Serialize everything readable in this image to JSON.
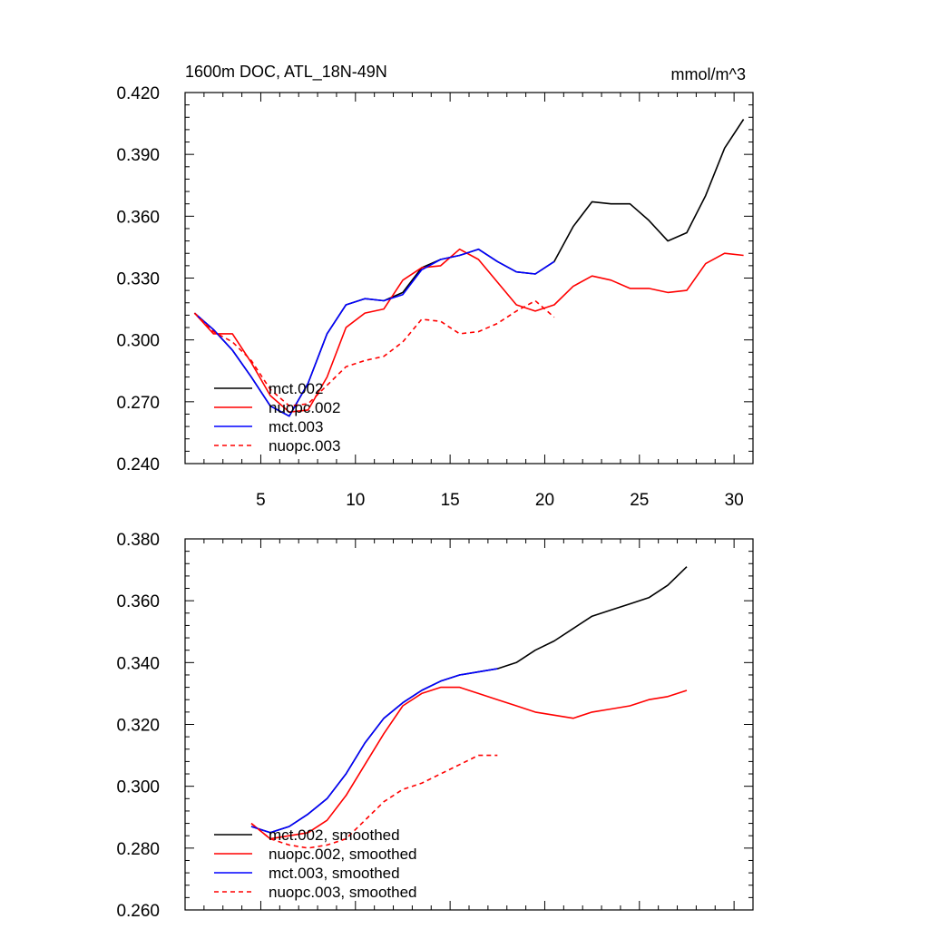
{
  "chart_data": [
    {
      "type": "line",
      "title": "1600m DOC, ATL_18N-49N",
      "units": "mmol/m^3",
      "xlim": [
        1,
        31
      ],
      "ylim": [
        0.24,
        0.42
      ],
      "x_ticks": [
        5,
        10,
        15,
        20,
        25,
        30
      ],
      "x_tick_labels": [
        "5",
        "10",
        "15",
        "20",
        "25",
        "30"
      ],
      "y_ticks": [
        0.24,
        0.27,
        0.3,
        0.33,
        0.36,
        0.39,
        0.42
      ],
      "y_tick_labels": [
        "0.240",
        "0.270",
        "0.300",
        "0.330",
        "0.360",
        "0.390",
        "0.420"
      ],
      "legend_position": "bottom-left",
      "series": [
        {
          "name": "mct.002",
          "color": "#000000",
          "dash": "solid",
          "x": [
            1.5,
            2.5,
            3.5,
            4.5,
            5.5,
            6.5,
            7.5,
            8.5,
            9.5,
            10.5,
            11.5,
            12.5,
            13.5,
            14.5,
            15.5,
            16.5,
            17.5,
            18.5,
            19.5,
            20.5,
            21.5,
            22.5,
            23.5,
            24.5,
            25.5,
            26.5,
            27.5,
            28.5,
            29.5,
            30.5
          ],
          "y": [
            0.313,
            0.305,
            0.295,
            0.282,
            0.268,
            0.263,
            0.279,
            0.303,
            0.317,
            0.32,
            0.319,
            0.323,
            0.335,
            0.339,
            0.341,
            0.344,
            0.338,
            0.333,
            0.332,
            0.338,
            0.355,
            0.367,
            0.366,
            0.366,
            0.358,
            0.348,
            0.352,
            0.37,
            0.393,
            0.407
          ]
        },
        {
          "name": "nuopc.002",
          "color": "#ff0000",
          "dash": "solid",
          "x": [
            1.5,
            2.5,
            3.5,
            4.5,
            5.5,
            6.5,
            7.5,
            8.5,
            9.5,
            10.5,
            11.5,
            12.5,
            13.5,
            14.5,
            15.5,
            16.5,
            17.5,
            18.5,
            19.5,
            20.5,
            21.5,
            22.5,
            23.5,
            24.5,
            25.5,
            26.5,
            27.5,
            28.5,
            29.5,
            30.5
          ],
          "y": [
            0.313,
            0.303,
            0.303,
            0.289,
            0.273,
            0.265,
            0.266,
            0.282,
            0.306,
            0.313,
            0.315,
            0.329,
            0.335,
            0.336,
            0.344,
            0.339,
            0.328,
            0.317,
            0.314,
            0.317,
            0.326,
            0.331,
            0.329,
            0.325,
            0.325,
            0.323,
            0.324,
            0.337,
            0.342,
            0.341
          ]
        },
        {
          "name": "mct.003",
          "color": "#0000ff",
          "dash": "solid",
          "x": [
            1.5,
            2.5,
            3.5,
            4.5,
            5.5,
            6.5,
            7.5,
            8.5,
            9.5,
            10.5,
            11.5,
            12.5,
            13.5,
            14.5,
            15.5,
            16.5,
            17.5,
            18.5,
            19.5,
            20.5
          ],
          "y": [
            0.313,
            0.305,
            0.295,
            0.282,
            0.268,
            0.263,
            0.279,
            0.303,
            0.317,
            0.32,
            0.319,
            0.322,
            0.334,
            0.339,
            0.341,
            0.344,
            0.338,
            0.333,
            0.332,
            0.338
          ]
        },
        {
          "name": "nuopc.003",
          "color": "#ff0000",
          "dash": "dashed",
          "x": [
            1.5,
            2.5,
            3.5,
            4.5,
            5.5,
            6.5,
            7.5,
            8.5,
            9.5,
            10.5,
            11.5,
            12.5,
            13.5,
            14.5,
            15.5,
            16.5,
            17.5,
            18.5,
            19.5,
            20.5
          ],
          "y": [
            0.313,
            0.304,
            0.299,
            0.29,
            0.276,
            0.268,
            0.269,
            0.278,
            0.287,
            0.29,
            0.292,
            0.299,
            0.31,
            0.309,
            0.303,
            0.304,
            0.308,
            0.314,
            0.319,
            0.311
          ]
        }
      ]
    },
    {
      "type": "line",
      "xlim": [
        1,
        31
      ],
      "ylim": [
        0.26,
        0.38
      ],
      "y_ticks": [
        0.26,
        0.28,
        0.3,
        0.32,
        0.34,
        0.36,
        0.38
      ],
      "y_tick_labels": [
        "0.260",
        "0.280",
        "0.300",
        "0.320",
        "0.340",
        "0.360",
        "0.380"
      ],
      "legend_position": "bottom-left",
      "series": [
        {
          "name": "mct.002, smoothed",
          "color": "#000000",
          "dash": "solid",
          "x": [
            4.5,
            5.5,
            6.5,
            7.5,
            8.5,
            9.5,
            10.5,
            11.5,
            12.5,
            13.5,
            14.5,
            15.5,
            16.5,
            17.5,
            18.5,
            19.5,
            20.5,
            21.5,
            22.5,
            23.5,
            24.5,
            25.5,
            26.5,
            27.5
          ],
          "y": [
            0.287,
            0.285,
            0.287,
            0.291,
            0.296,
            0.304,
            0.314,
            0.322,
            0.327,
            0.331,
            0.334,
            0.336,
            0.337,
            0.338,
            0.34,
            0.344,
            0.347,
            0.351,
            0.355,
            0.357,
            0.359,
            0.361,
            0.365,
            0.371
          ]
        },
        {
          "name": "nuopc.002, smoothed",
          "color": "#ff0000",
          "dash": "solid",
          "x": [
            4.5,
            5.5,
            6.5,
            7.5,
            8.5,
            9.5,
            10.5,
            11.5,
            12.5,
            13.5,
            14.5,
            15.5,
            16.5,
            17.5,
            18.5,
            19.5,
            20.5,
            21.5,
            22.5,
            23.5,
            24.5,
            25.5,
            26.5,
            27.5
          ],
          "y": [
            0.288,
            0.283,
            0.284,
            0.285,
            0.289,
            0.297,
            0.307,
            0.317,
            0.326,
            0.33,
            0.332,
            0.332,
            0.33,
            0.328,
            0.326,
            0.324,
            0.323,
            0.322,
            0.324,
            0.325,
            0.326,
            0.328,
            0.329,
            0.331
          ]
        },
        {
          "name": "mct.003, smoothed",
          "color": "#0000ff",
          "dash": "solid",
          "x": [
            4.5,
            5.5,
            6.5,
            7.5,
            8.5,
            9.5,
            10.5,
            11.5,
            12.5,
            13.5,
            14.5,
            15.5,
            16.5,
            17.5
          ],
          "y": [
            0.287,
            0.285,
            0.287,
            0.291,
            0.296,
            0.304,
            0.314,
            0.322,
            0.327,
            0.331,
            0.334,
            0.336,
            0.337,
            0.338
          ]
        },
        {
          "name": "nuopc.003, smoothed",
          "color": "#ff0000",
          "dash": "dashed",
          "x": [
            4.5,
            5.5,
            6.5,
            7.5,
            8.5,
            9.5,
            10.5,
            11.5,
            12.5,
            13.5,
            14.5,
            15.5,
            16.5,
            17.5
          ],
          "y": [
            0.288,
            0.283,
            0.281,
            0.28,
            0.281,
            0.283,
            0.289,
            0.295,
            0.299,
            0.301,
            0.304,
            0.307,
            0.31,
            0.31
          ]
        }
      ]
    }
  ]
}
